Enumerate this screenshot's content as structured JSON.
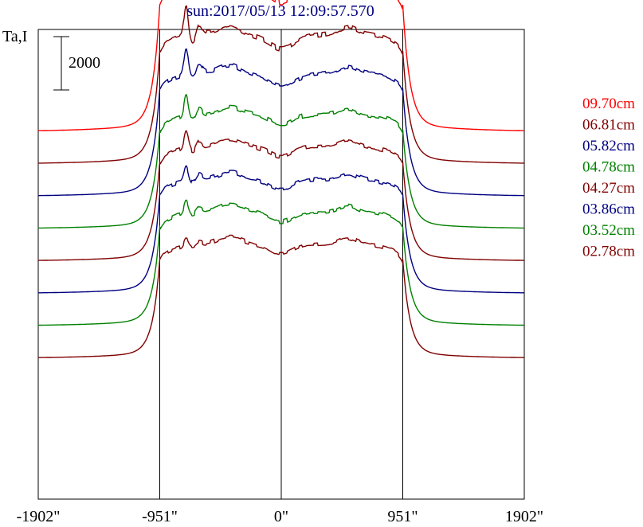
{
  "chart_data": {
    "type": "line",
    "title": "sun:2017/05/13 12:09:57.570",
    "ylabel": "Ta,I",
    "scale_bar_label": "2000",
    "scale_bar_value": 2000,
    "x_ticks": [
      -1902,
      -951,
      0,
      951,
      1902
    ],
    "x_tick_labels": [
      "-1902\"",
      "-951\"",
      "0\"",
      "951\"",
      "1902\""
    ],
    "xlim": [
      -1902,
      1902
    ],
    "ylim": [
      -1000,
      13500
    ],
    "vertical_lines": [
      -951,
      0,
      951
    ],
    "colors": {
      "red": "#ff0000",
      "darkred": "#800000",
      "navy": "#000080",
      "green": "#008000",
      "title": "#000080"
    },
    "series": [
      {
        "name": "09.70cm",
        "color": "#ff0000",
        "baseline": 10350,
        "amp": 4550,
        "edge": 0.8,
        "spike": 1.22,
        "dip": 0.45
      },
      {
        "name": "06.81cm",
        "color": "#800000",
        "baseline": 9350,
        "amp": 4050,
        "edge": 0.8,
        "spike": 0.95,
        "dip": 0.4
      },
      {
        "name": "05.82cm",
        "color": "#000080",
        "baseline": 8350,
        "amp": 3850,
        "edge": 0.8,
        "spike": 0.85,
        "dip": 0.35
      },
      {
        "name": "04.78cm",
        "color": "#008000",
        "baseline": 7350,
        "amp": 3550,
        "edge": 0.8,
        "spike": 0.7,
        "dip": 0.3
      },
      {
        "name": "04.27cm",
        "color": "#800000",
        "baseline": 6350,
        "amp": 3550,
        "edge": 0.8,
        "spike": 0.6,
        "dip": 0.25
      },
      {
        "name": "03.86cm",
        "color": "#000080",
        "baseline": 5350,
        "amp": 3550,
        "edge": 0.8,
        "spike": 0.5,
        "dip": 0.2
      },
      {
        "name": "03.52cm",
        "color": "#008000",
        "baseline": 4350,
        "amp": 3550,
        "edge": 0.8,
        "spike": 0.4,
        "dip": 0.15
      },
      {
        "name": "02.78cm",
        "color": "#800000",
        "baseline": 3350,
        "amp": 3550,
        "edge": 0.8,
        "spike": 0.25,
        "dip": 0.1
      }
    ]
  }
}
